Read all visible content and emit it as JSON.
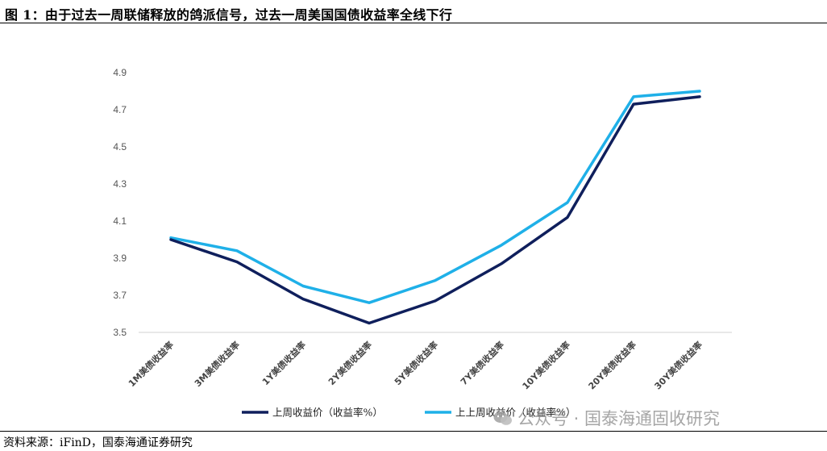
{
  "figure": {
    "title": "图 1：由于过去一周联储释放的鸽派信号，过去一周美国国债收益率全线下行",
    "source": "资料来源：iFinD，国泰海通证券研究",
    "watermark": "公众号 · 国泰海通固收研究",
    "watermark_icon": "wechat-icon"
  },
  "chart_data": {
    "type": "line",
    "title": "",
    "xlabel": "",
    "ylabel": "",
    "categories": [
      "1M美债收益率",
      "3M美债收益率",
      "1Y美债收益率",
      "2Y美债收益率",
      "5Y美债收益率",
      "7Y美债收益率",
      "10Y美债收益率",
      "20Y美债收益率",
      "30Y美债收益率"
    ],
    "ylim": [
      3.5,
      4.9
    ],
    "yticks": [
      "3.5",
      "3.7",
      "3.9",
      "4.1",
      "4.3",
      "4.5",
      "4.7",
      "4.9"
    ],
    "grid": false,
    "legend_position": "bottom",
    "series": [
      {
        "name": "上周收益价（收益率%）",
        "color": "#0f1f5c",
        "values": [
          4.0,
          3.88,
          3.68,
          3.55,
          3.67,
          3.87,
          4.12,
          4.73,
          4.77
        ]
      },
      {
        "name": "上上周收益价（收益率%）",
        "color": "#1fb0e8",
        "values": [
          4.01,
          3.94,
          3.75,
          3.66,
          3.78,
          3.97,
          4.2,
          4.77,
          4.8
        ]
      }
    ]
  }
}
